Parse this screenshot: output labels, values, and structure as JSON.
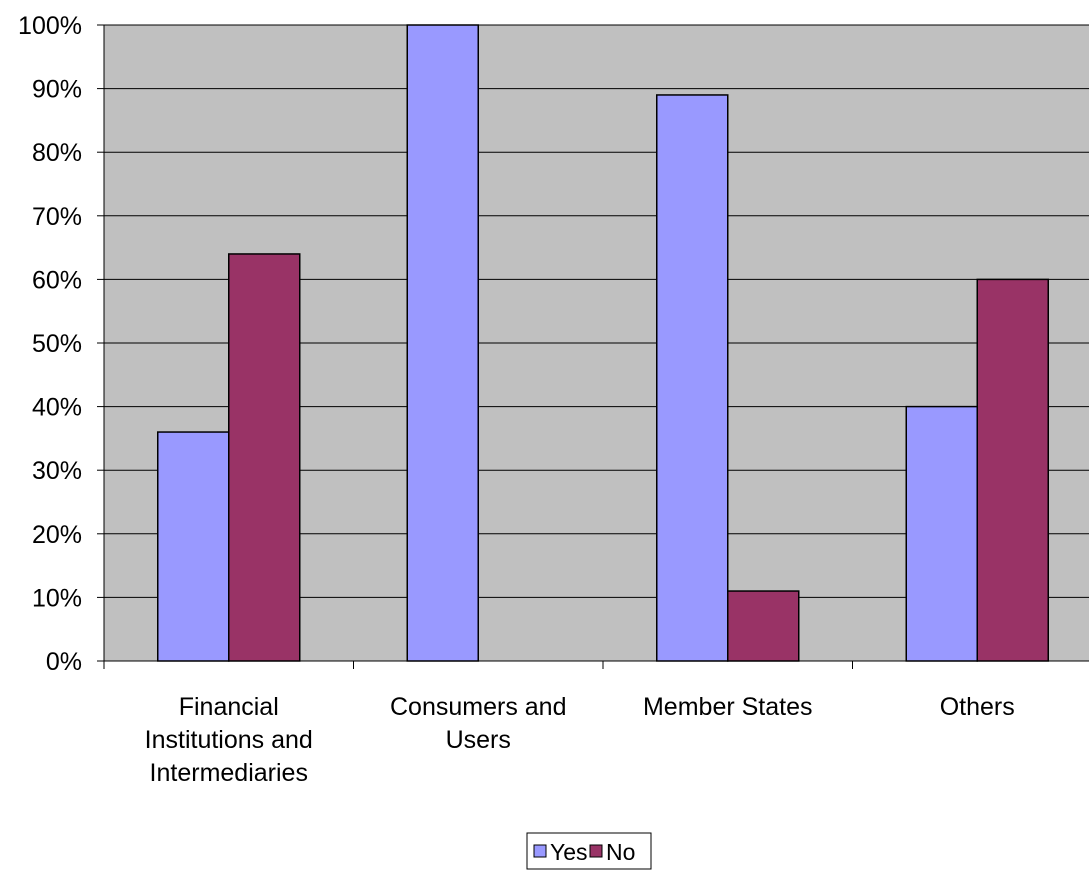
{
  "chart_data": {
    "type": "bar",
    "title": "",
    "xlabel": "",
    "ylabel": "",
    "categories": [
      [
        "Financial",
        "Institutions and",
        "Intermediaries"
      ],
      [
        "Consumers and",
        "Users"
      ],
      [
        "Member States"
      ],
      [
        "Others"
      ]
    ],
    "series": [
      {
        "name": "Yes",
        "values": [
          0.36,
          1.0,
          0.89,
          0.4
        ],
        "color": "#9999ff"
      },
      {
        "name": "No",
        "values": [
          0.64,
          0.0,
          0.11,
          0.6
        ],
        "color": "#993366"
      }
    ],
    "ylim": [
      0,
      1
    ],
    "y_ticks": [
      "0%",
      "10%",
      "20%",
      "30%",
      "40%",
      "50%",
      "60%",
      "70%",
      "80%",
      "90%",
      "100%"
    ],
    "grid": true,
    "plot_background": "#c0c0c0",
    "legend_position": "bottom"
  }
}
